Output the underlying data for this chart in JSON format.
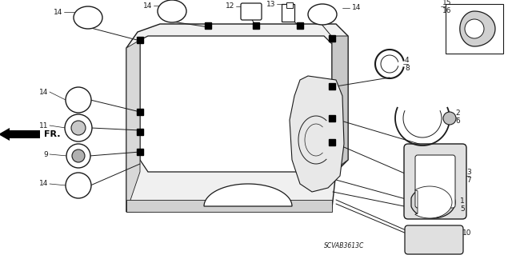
{
  "bg_color": "#ffffff",
  "line_color": "#1a1a1a",
  "text_color": "#1a1a1a",
  "diagram_code": "SCVAB3613C",
  "figsize": [
    6.4,
    3.19
  ],
  "dpi": 100
}
